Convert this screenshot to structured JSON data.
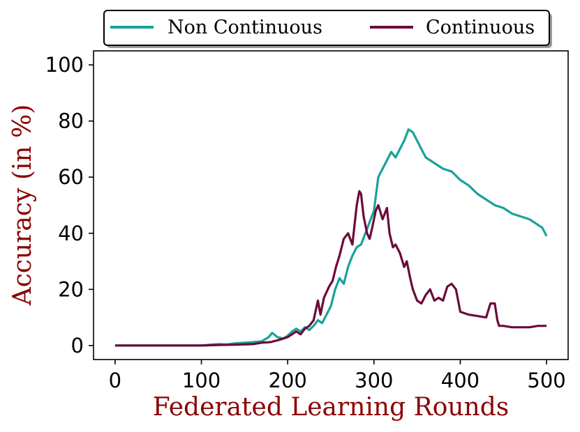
{
  "chart_data": {
    "type": "line",
    "xlabel": "Federated Learning Rounds",
    "ylabel": "Accuracy (in %)",
    "xlim": [
      -25,
      525
    ],
    "ylim": [
      -5,
      105
    ],
    "xticks": [
      0,
      100,
      200,
      300,
      400,
      500
    ],
    "yticks": [
      0,
      20,
      40,
      60,
      80,
      100
    ],
    "grid": false,
    "legend": "top-outside",
    "series": [
      {
        "name": "Non Continuous",
        "color": "#17a398",
        "x": [
          0,
          20,
          40,
          60,
          80,
          100,
          110,
          120,
          130,
          140,
          150,
          160,
          170,
          178,
          182,
          188,
          195,
          200,
          205,
          210,
          215,
          220,
          225,
          230,
          235,
          240,
          245,
          250,
          255,
          260,
          265,
          270,
          275,
          280,
          285,
          290,
          295,
          300,
          305,
          310,
          315,
          320,
          325,
          330,
          335,
          340,
          345,
          350,
          355,
          360,
          370,
          380,
          390,
          400,
          410,
          420,
          430,
          440,
          450,
          460,
          470,
          480,
          490,
          495,
          500
        ],
        "y": [
          0,
          0,
          0,
          0,
          0,
          0,
          0.3,
          0.5,
          0.4,
          0.8,
          1,
          1.2,
          1.5,
          3,
          4.5,
          3,
          2.5,
          3.5,
          5,
          6,
          5,
          6.5,
          5.5,
          7,
          9,
          8,
          11,
          14,
          20,
          24,
          22,
          28,
          32,
          35,
          36,
          40,
          44,
          48,
          60,
          63,
          66,
          69,
          67,
          70,
          73,
          77,
          76,
          73,
          70,
          67,
          65,
          63,
          62,
          59,
          57,
          54,
          52,
          50,
          49,
          47,
          46,
          45,
          43,
          42,
          39
        ]
      },
      {
        "name": "Continuous",
        "color": "#6b0a3a",
        "x": [
          0,
          20,
          40,
          60,
          80,
          100,
          120,
          140,
          160,
          170,
          180,
          190,
          200,
          205,
          210,
          215,
          220,
          225,
          230,
          235,
          238,
          242,
          248,
          252,
          256,
          260,
          265,
          270,
          275,
          280,
          283,
          285,
          288,
          292,
          295,
          298,
          302,
          305,
          310,
          315,
          318,
          322,
          325,
          330,
          335,
          338,
          342,
          345,
          350,
          355,
          360,
          365,
          370,
          375,
          380,
          385,
          390,
          395,
          400,
          410,
          420,
          430,
          435,
          440,
          443,
          445,
          450,
          460,
          470,
          480,
          490,
          500
        ],
        "y": [
          0,
          0,
          0,
          0,
          0,
          0,
          0.2,
          0.3,
          0.5,
          1,
          1.2,
          2,
          3,
          4,
          5,
          4,
          6,
          7,
          9,
          16,
          11,
          17,
          21,
          23,
          28,
          32,
          38,
          40,
          36,
          50,
          55,
          54,
          46,
          40,
          38,
          42,
          48,
          50,
          45,
          49,
          40,
          35,
          36,
          33,
          28,
          30,
          24,
          20,
          16,
          15,
          18,
          20,
          16,
          17,
          16,
          21,
          22,
          20,
          12,
          11,
          10.5,
          10,
          15,
          15,
          9,
          7,
          7,
          6.5,
          6.5,
          6.5,
          7,
          7
        ]
      }
    ]
  }
}
